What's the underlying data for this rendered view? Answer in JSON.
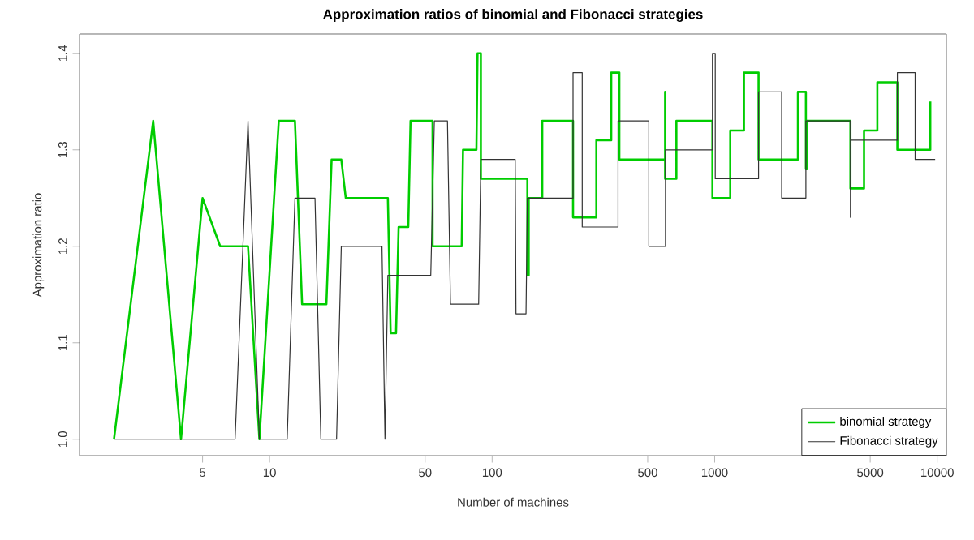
{
  "chart_data": {
    "type": "line",
    "title": "Approximation ratios of binomial and Fibonacci strategies",
    "xlabel": "Number of machines",
    "ylabel": "Approximation ratio",
    "log": "x",
    "xlim": [
      1.4,
      11000
    ],
    "ylim": [
      0.983,
      1.42
    ],
    "xticks": [
      5,
      10,
      50,
      100,
      500,
      1000,
      5000,
      10000
    ],
    "yticks": [
      {
        "value": 1,
        "label": "1.0"
      },
      1.1,
      1.2,
      1.3,
      1.4
    ],
    "legend": "bottom right",
    "marker": "none",
    "series": [
      {
        "name": "binomial strategy",
        "color": "#00cd00",
        "x": [
          2,
          3,
          4,
          5,
          6,
          8,
          9,
          11,
          13,
          14,
          18,
          19,
          21,
          22,
          34,
          35,
          37,
          38,
          42,
          43,
          54,
          54,
          73,
          74,
          85,
          86,
          89,
          89,
          144,
          144,
          146,
          146,
          168,
          168,
          231,
          231,
          294,
          294,
          343,
          343,
          373,
          373,
          599,
          599,
          599,
          673,
          673,
          977,
          977,
          1175,
          1175,
          1354,
          1354,
          1575,
          1575,
          2366,
          2366,
          2570,
          2570,
          2600,
          2600,
          4074,
          4074,
          4690,
          4690,
          5383,
          5383,
          6622,
          6622,
          9311,
          9311
        ],
        "values": [
          1.0,
          1.33,
          1.0,
          1.25,
          1.2,
          1.2,
          1.0,
          1.33,
          1.33,
          1.14,
          1.14,
          1.29,
          1.29,
          1.25,
          1.25,
          1.11,
          1.11,
          1.22,
          1.22,
          1.33,
          1.33,
          1.2,
          1.2,
          1.3,
          1.3,
          1.4,
          1.4,
          1.27,
          1.27,
          1.17,
          1.17,
          1.25,
          1.25,
          1.33,
          1.33,
          1.23,
          1.23,
          1.31,
          1.31,
          1.38,
          1.38,
          1.29,
          1.29,
          1.36,
          1.27,
          1.27,
          1.33,
          1.33,
          1.25,
          1.25,
          1.32,
          1.32,
          1.38,
          1.38,
          1.29,
          1.29,
          1.36,
          1.36,
          1.28,
          1.28,
          1.33,
          1.33,
          1.26,
          1.26,
          1.32,
          1.32,
          1.37,
          1.37,
          1.3,
          1.3,
          1.35
        ]
      },
      {
        "name": "Fibonacci strategy",
        "color": "#333333",
        "x": [
          2,
          7,
          8,
          9,
          12,
          13,
          16,
          17,
          20,
          21,
          32,
          33,
          34,
          53,
          55,
          63,
          65,
          87,
          89,
          127,
          128,
          142,
          144,
          231,
          231,
          254,
          254,
          368,
          368,
          506,
          506,
          601,
          601,
          977,
          977,
          1006,
          1006,
          1575,
          1575,
          2000,
          2000,
          2570,
          2570,
          4074,
          4074,
          4074,
          6622,
          6622,
          7960,
          7960,
          9790
        ],
        "values": [
          1.0,
          1.0,
          1.33,
          1.0,
          1.0,
          1.25,
          1.25,
          1.0,
          1.0,
          1.2,
          1.2,
          1.0,
          1.17,
          1.17,
          1.33,
          1.33,
          1.14,
          1.14,
          1.29,
          1.29,
          1.13,
          1.13,
          1.25,
          1.25,
          1.38,
          1.38,
          1.22,
          1.22,
          1.33,
          1.33,
          1.2,
          1.2,
          1.3,
          1.3,
          1.4,
          1.4,
          1.27,
          1.27,
          1.36,
          1.36,
          1.25,
          1.25,
          1.33,
          1.33,
          1.23,
          1.31,
          1.31,
          1.38,
          1.38,
          1.29,
          1.29
        ]
      }
    ]
  }
}
